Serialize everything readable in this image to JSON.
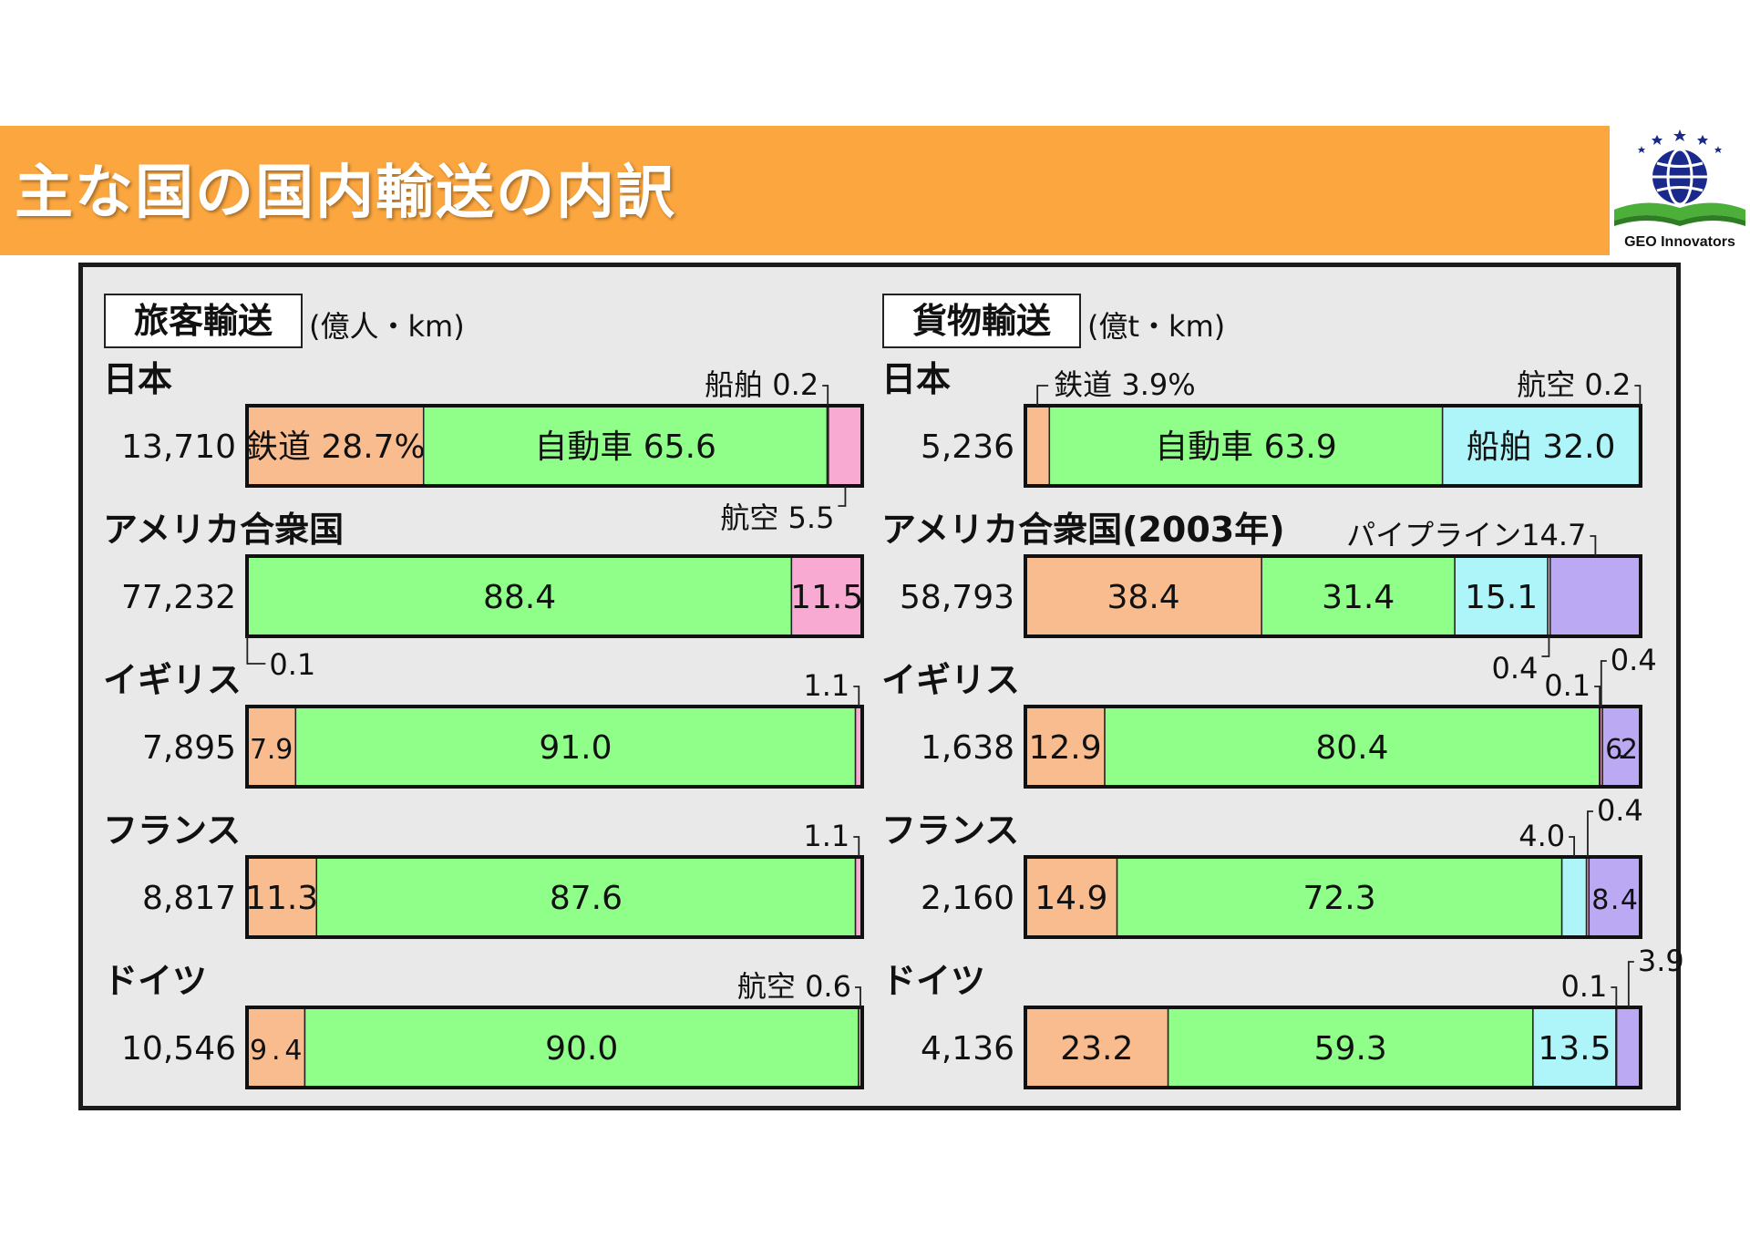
{
  "title": "主な国の国内輸送の内訳",
  "logo": {
    "text": "GEO Innovators",
    "icon": "globe-book-logo"
  },
  "colors": {
    "banner": "#fba63f",
    "railway": "#f9bc8f",
    "automobile": "#8fff8a",
    "ship": "#aef5f9",
    "aviation": "#f9aad2",
    "pipeline": "#bba9f4",
    "panel": "#e9e9ea"
  },
  "chart_data": [
    {
      "type": "bar",
      "orientation": "horizontal-stacked-100%",
      "title": "旅客輸送",
      "unit": "(億人・km)",
      "segment_order": [
        "railway",
        "automobile",
        "ship",
        "aviation"
      ],
      "categories": [
        "日本",
        "アメリカ合衆国",
        "イギリス",
        "フランス",
        "ドイツ"
      ],
      "totals": [
        "13,710",
        "77,232",
        "7,895",
        "8,817",
        "10,546"
      ],
      "rows": [
        {
          "country": "日本",
          "total": "13,710",
          "values": {
            "railway": 28.7,
            "automobile": 65.6,
            "ship": 0.2,
            "aviation": 5.5
          },
          "labels": {
            "railway": "鉄道 28.7%",
            "automobile": "自動車 65.6"
          },
          "callouts": [
            {
              "seg": "ship",
              "text": "船舶 0.2",
              "pos": "above"
            },
            {
              "seg": "aviation",
              "text": "航空 5.5",
              "pos": "below"
            }
          ]
        },
        {
          "country": "アメリカ合衆国",
          "total": "77,232",
          "values": {
            "railway": 0.1,
            "automobile": 88.4,
            "aviation": 11.5
          },
          "labels": {
            "automobile": "88.4",
            "aviation": "11.5"
          },
          "callouts": [
            {
              "seg": "railway",
              "text": "0.1",
              "pos": "below-left"
            }
          ]
        },
        {
          "country": "イギリス",
          "total": "7,895",
          "values": {
            "railway": 7.9,
            "automobile": 91.0,
            "aviation": 1.1
          },
          "labels": {
            "railway": "7.9",
            "automobile": "91.0"
          },
          "callouts": [
            {
              "seg": "aviation",
              "text": "1.1",
              "pos": "above"
            }
          ]
        },
        {
          "country": "フランス",
          "total": "8,817",
          "values": {
            "railway": 11.3,
            "automobile": 87.6,
            "aviation": 1.1
          },
          "labels": {
            "railway": "11.3",
            "automobile": "87.6"
          },
          "callouts": [
            {
              "seg": "aviation",
              "text": "1.1",
              "pos": "above"
            }
          ]
        },
        {
          "country": "ドイツ",
          "total": "10,546",
          "values": {
            "railway": 9.4,
            "automobile": 90.0,
            "aviation": 0.6
          },
          "labels": {
            "railway": "9.4",
            "automobile": "90.0"
          },
          "callouts": [
            {
              "seg": "aviation",
              "text": "航空 0.6",
              "pos": "above"
            }
          ]
        }
      ]
    },
    {
      "type": "bar",
      "orientation": "horizontal-stacked-100%",
      "title": "貨物輸送",
      "unit": "(億t・km)",
      "segment_order": [
        "railway",
        "automobile",
        "ship",
        "aviation",
        "pipeline"
      ],
      "categories": [
        "日本",
        "アメリカ合衆国(2003年)",
        "イギリス",
        "フランス",
        "ドイツ"
      ],
      "totals": [
        "5,236",
        "58,793",
        "1,638",
        "2,160",
        "4,136"
      ],
      "rows": [
        {
          "country": "日本",
          "total": "5,236",
          "values": {
            "railway": 3.9,
            "automobile": 63.9,
            "ship": 32.0,
            "aviation": 0.2
          },
          "labels": {
            "automobile": "自動車 63.9",
            "ship": "船舶 32.0"
          },
          "callouts": [
            {
              "seg": "railway",
              "text": "鉄道 3.9%",
              "pos": "above-left"
            },
            {
              "seg": "aviation",
              "text": "航空 0.2",
              "pos": "above"
            }
          ]
        },
        {
          "country": "アメリカ合衆国(2003年)",
          "total": "58,793",
          "values": {
            "railway": 38.4,
            "automobile": 31.4,
            "ship": 15.1,
            "aviation": 0.4,
            "pipeline": 14.7
          },
          "labels": {
            "railway": "38.4",
            "automobile": "31.4",
            "ship": "15.1"
          },
          "callouts": [
            {
              "seg": "pipeline",
              "text": "パイプライン14.7",
              "pos": "above"
            },
            {
              "seg": "aviation",
              "text": "0.4",
              "pos": "below"
            }
          ]
        },
        {
          "country": "イギリス",
          "total": "1,638",
          "values": {
            "railway": 12.9,
            "automobile": 80.4,
            "ship": 0.1,
            "aviation": 0.4,
            "pipeline": 6.2
          },
          "labels": {
            "railway": "12.9",
            "automobile": "80.4",
            "pipeline": "6.2"
          },
          "callouts": [
            {
              "seg": "ship",
              "text": "0.1",
              "pos": "above"
            },
            {
              "seg": "aviation",
              "text": "0.4",
              "pos": "above-right"
            }
          ]
        },
        {
          "country": "フランス",
          "total": "2,160",
          "values": {
            "railway": 14.9,
            "automobile": 72.3,
            "ship": 4.0,
            "aviation": 0.4,
            "pipeline": 8.4
          },
          "labels": {
            "railway": "14.9",
            "automobile": "72.3",
            "pipeline": "8.4"
          },
          "callouts": [
            {
              "seg": "ship",
              "text": "4.0",
              "pos": "above"
            },
            {
              "seg": "aviation",
              "text": "0.4",
              "pos": "above-right"
            }
          ]
        },
        {
          "country": "ドイツ",
          "total": "4,136",
          "values": {
            "railway": 23.2,
            "automobile": 59.3,
            "ship": 13.5,
            "aviation": 0.1,
            "pipeline": 3.9
          },
          "labels": {
            "railway": "23.2",
            "automobile": "59.3",
            "ship": "13.5"
          },
          "callouts": [
            {
              "seg": "aviation",
              "text": "0.1",
              "pos": "above"
            },
            {
              "seg": "pipeline",
              "text": "3.9",
              "pos": "above-right"
            }
          ]
        }
      ]
    }
  ]
}
